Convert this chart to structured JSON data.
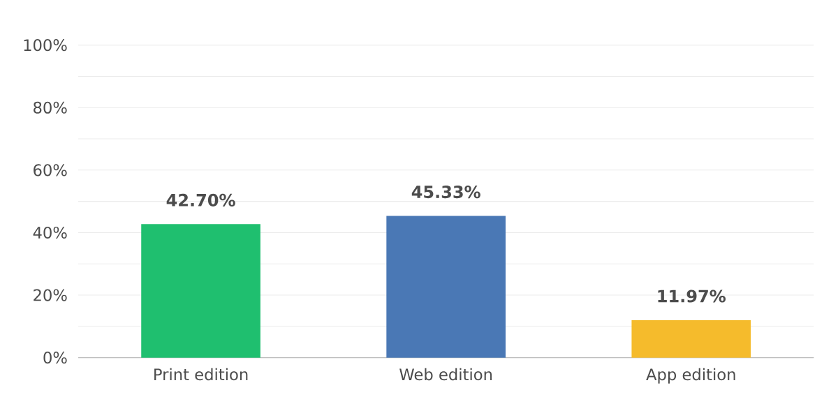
{
  "chart_data": {
    "type": "bar",
    "categories": [
      "Print edition",
      "Web edition",
      "App edition"
    ],
    "values": [
      42.7,
      45.33,
      11.97
    ],
    "colors": [
      "#1fbf6f",
      "#4a78b5",
      "#f5bb2c"
    ],
    "value_labels": [
      "42.70%",
      "45.33%",
      "11.97%"
    ],
    "ylim": [
      0,
      100
    ],
    "yticks": [
      {
        "value": 0,
        "label": "0%"
      },
      {
        "value": 10,
        "label": null
      },
      {
        "value": 20,
        "label": "20%"
      },
      {
        "value": 30,
        "label": null
      },
      {
        "value": 40,
        "label": "40%"
      },
      {
        "value": 50,
        "label": null
      },
      {
        "value": 60,
        "label": "60%"
      },
      {
        "value": 70,
        "label": null
      },
      {
        "value": 80,
        "label": "80%"
      },
      {
        "value": 90,
        "label": null
      },
      {
        "value": 100,
        "label": "100%"
      }
    ],
    "grid": "y"
  }
}
